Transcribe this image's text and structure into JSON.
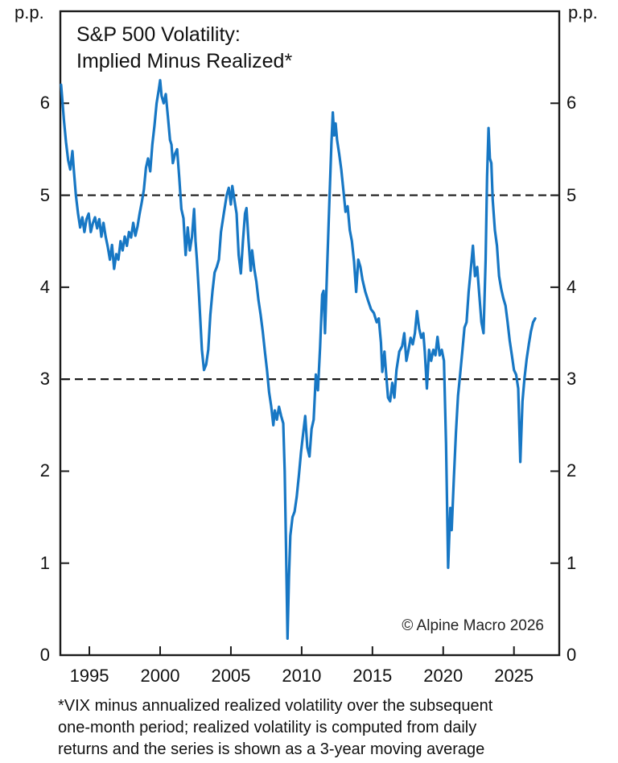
{
  "chart_data": {
    "type": "line",
    "title_lines": [
      "S&P 500 Volatility:",
      "Implied Minus Realized*"
    ],
    "unit_label": "p.p.",
    "watermark": "© Alpine Macro 2026",
    "footnote_lines": [
      "*VIX minus annualized realized volatility over the subsequent",
      "one-month period; realized volatility is computed from daily",
      "returns and the series is shown as a 3-year moving average"
    ],
    "xlabel": "",
    "ylabel": "p.p.",
    "x_ticks": [
      1995,
      2000,
      2005,
      2010,
      2015,
      2020,
      2025
    ],
    "y_ticks": [
      0,
      1,
      2,
      3,
      4,
      5,
      6
    ],
    "xlim": [
      1992.95,
      2028.2
    ],
    "ylim": [
      0,
      7.0
    ],
    "reference_lines": [
      5,
      3
    ],
    "grid": "off",
    "legend": "none",
    "line_color": "#1777c4",
    "axis_color": "#1a1a1a",
    "series": [
      {
        "name": "VIX minus subsequent realized volatility (3-year moving average)",
        "points": [
          [
            1993.0,
            6.2
          ],
          [
            1993.1,
            6.02
          ],
          [
            1993.2,
            5.82
          ],
          [
            1993.35,
            5.58
          ],
          [
            1993.5,
            5.38
          ],
          [
            1993.65,
            5.28
          ],
          [
            1993.8,
            5.48
          ],
          [
            1993.9,
            5.28
          ],
          [
            1994.05,
            5.0
          ],
          [
            1994.2,
            4.8
          ],
          [
            1994.35,
            4.65
          ],
          [
            1994.5,
            4.76
          ],
          [
            1994.65,
            4.6
          ],
          [
            1994.8,
            4.74
          ],
          [
            1994.95,
            4.8
          ],
          [
            1995.1,
            4.6
          ],
          [
            1995.25,
            4.7
          ],
          [
            1995.4,
            4.76
          ],
          [
            1995.55,
            4.64
          ],
          [
            1995.7,
            4.74
          ],
          [
            1995.85,
            4.55
          ],
          [
            1996.0,
            4.7
          ],
          [
            1996.15,
            4.55
          ],
          [
            1996.3,
            4.44
          ],
          [
            1996.45,
            4.3
          ],
          [
            1996.6,
            4.46
          ],
          [
            1996.75,
            4.2
          ],
          [
            1996.9,
            4.36
          ],
          [
            1997.05,
            4.3
          ],
          [
            1997.2,
            4.5
          ],
          [
            1997.35,
            4.4
          ],
          [
            1997.5,
            4.55
          ],
          [
            1997.65,
            4.45
          ],
          [
            1997.8,
            4.6
          ],
          [
            1997.95,
            4.54
          ],
          [
            1998.1,
            4.7
          ],
          [
            1998.25,
            4.56
          ],
          [
            1998.4,
            4.66
          ],
          [
            1998.55,
            4.8
          ],
          [
            1998.7,
            4.92
          ],
          [
            1998.85,
            5.06
          ],
          [
            1999.0,
            5.3
          ],
          [
            1999.15,
            5.4
          ],
          [
            1999.3,
            5.26
          ],
          [
            1999.45,
            5.55
          ],
          [
            1999.6,
            5.76
          ],
          [
            1999.75,
            6.0
          ],
          [
            1999.9,
            6.14
          ],
          [
            2000.0,
            6.25
          ],
          [
            2000.1,
            6.08
          ],
          [
            2000.25,
            6.0
          ],
          [
            2000.4,
            6.1
          ],
          [
            2000.55,
            5.85
          ],
          [
            2000.7,
            5.6
          ],
          [
            2000.8,
            5.55
          ],
          [
            2000.9,
            5.35
          ],
          [
            2001.05,
            5.45
          ],
          [
            2001.2,
            5.5
          ],
          [
            2001.35,
            5.2
          ],
          [
            2001.5,
            4.85
          ],
          [
            2001.65,
            4.75
          ],
          [
            2001.8,
            4.35
          ],
          [
            2001.95,
            4.65
          ],
          [
            2002.1,
            4.4
          ],
          [
            2002.25,
            4.55
          ],
          [
            2002.4,
            4.85
          ],
          [
            2002.5,
            4.5
          ],
          [
            2002.6,
            4.3
          ],
          [
            2002.75,
            3.9
          ],
          [
            2002.95,
            3.32
          ],
          [
            2003.1,
            3.1
          ],
          [
            2003.25,
            3.16
          ],
          [
            2003.4,
            3.32
          ],
          [
            2003.55,
            3.7
          ],
          [
            2003.7,
            3.96
          ],
          [
            2003.85,
            4.16
          ],
          [
            2004.0,
            4.22
          ],
          [
            2004.15,
            4.3
          ],
          [
            2004.3,
            4.6
          ],
          [
            2004.5,
            4.8
          ],
          [
            2004.7,
            5.0
          ],
          [
            2004.85,
            5.08
          ],
          [
            2005.0,
            4.9
          ],
          [
            2005.1,
            5.1
          ],
          [
            2005.25,
            4.95
          ],
          [
            2005.4,
            4.8
          ],
          [
            2005.55,
            4.35
          ],
          [
            2005.7,
            4.15
          ],
          [
            2005.85,
            4.5
          ],
          [
            2006.0,
            4.8
          ],
          [
            2006.1,
            4.86
          ],
          [
            2006.25,
            4.5
          ],
          [
            2006.4,
            4.18
          ],
          [
            2006.5,
            4.4
          ],
          [
            2006.65,
            4.2
          ],
          [
            2006.8,
            4.06
          ],
          [
            2006.95,
            3.86
          ],
          [
            2007.1,
            3.7
          ],
          [
            2007.25,
            3.52
          ],
          [
            2007.4,
            3.3
          ],
          [
            2007.55,
            3.1
          ],
          [
            2007.7,
            2.86
          ],
          [
            2007.85,
            2.7
          ],
          [
            2008.0,
            2.5
          ],
          [
            2008.1,
            2.66
          ],
          [
            2008.25,
            2.56
          ],
          [
            2008.4,
            2.7
          ],
          [
            2008.55,
            2.6
          ],
          [
            2008.7,
            2.52
          ],
          [
            2008.8,
            2.0
          ],
          [
            2008.9,
            1.15
          ],
          [
            2009.0,
            0.18
          ],
          [
            2009.1,
            0.85
          ],
          [
            2009.2,
            1.3
          ],
          [
            2009.35,
            1.5
          ],
          [
            2009.5,
            1.56
          ],
          [
            2009.65,
            1.72
          ],
          [
            2009.8,
            1.95
          ],
          [
            2009.95,
            2.2
          ],
          [
            2010.1,
            2.4
          ],
          [
            2010.25,
            2.6
          ],
          [
            2010.4,
            2.26
          ],
          [
            2010.55,
            2.16
          ],
          [
            2010.7,
            2.46
          ],
          [
            2010.85,
            2.56
          ],
          [
            2011.0,
            3.05
          ],
          [
            2011.15,
            2.88
          ],
          [
            2011.3,
            3.35
          ],
          [
            2011.45,
            3.92
          ],
          [
            2011.55,
            3.96
          ],
          [
            2011.65,
            3.5
          ],
          [
            2011.8,
            4.2
          ],
          [
            2011.95,
            4.9
          ],
          [
            2012.1,
            5.55
          ],
          [
            2012.2,
            5.9
          ],
          [
            2012.3,
            5.65
          ],
          [
            2012.4,
            5.78
          ],
          [
            2012.5,
            5.6
          ],
          [
            2012.65,
            5.45
          ],
          [
            2012.8,
            5.28
          ],
          [
            2012.95,
            5.05
          ],
          [
            2013.1,
            4.82
          ],
          [
            2013.25,
            4.88
          ],
          [
            2013.4,
            4.62
          ],
          [
            2013.55,
            4.5
          ],
          [
            2013.7,
            4.28
          ],
          [
            2013.85,
            3.95
          ],
          [
            2014.0,
            4.3
          ],
          [
            2014.15,
            4.22
          ],
          [
            2014.3,
            4.08
          ],
          [
            2014.5,
            3.95
          ],
          [
            2014.7,
            3.85
          ],
          [
            2014.9,
            3.76
          ],
          [
            2015.1,
            3.72
          ],
          [
            2015.3,
            3.62
          ],
          [
            2015.45,
            3.66
          ],
          [
            2015.6,
            3.4
          ],
          [
            2015.7,
            3.08
          ],
          [
            2015.85,
            3.3
          ],
          [
            2015.95,
            3.1
          ],
          [
            2016.1,
            2.8
          ],
          [
            2016.25,
            2.76
          ],
          [
            2016.4,
            2.96
          ],
          [
            2016.55,
            2.8
          ],
          [
            2016.7,
            3.1
          ],
          [
            2016.9,
            3.3
          ],
          [
            2017.1,
            3.36
          ],
          [
            2017.25,
            3.5
          ],
          [
            2017.4,
            3.2
          ],
          [
            2017.55,
            3.32
          ],
          [
            2017.7,
            3.45
          ],
          [
            2017.85,
            3.38
          ],
          [
            2018.0,
            3.5
          ],
          [
            2018.15,
            3.74
          ],
          [
            2018.3,
            3.55
          ],
          [
            2018.45,
            3.45
          ],
          [
            2018.6,
            3.5
          ],
          [
            2018.7,
            3.3
          ],
          [
            2018.85,
            2.9
          ],
          [
            2019.0,
            3.32
          ],
          [
            2019.15,
            3.2
          ],
          [
            2019.3,
            3.32
          ],
          [
            2019.45,
            3.26
          ],
          [
            2019.6,
            3.46
          ],
          [
            2019.75,
            3.26
          ],
          [
            2019.9,
            3.32
          ],
          [
            2020.05,
            3.2
          ],
          [
            2020.2,
            2.3
          ],
          [
            2020.35,
            0.95
          ],
          [
            2020.5,
            1.6
          ],
          [
            2020.6,
            1.36
          ],
          [
            2020.75,
            1.92
          ],
          [
            2020.9,
            2.42
          ],
          [
            2021.05,
            2.82
          ],
          [
            2021.2,
            3.06
          ],
          [
            2021.35,
            3.3
          ],
          [
            2021.5,
            3.56
          ],
          [
            2021.65,
            3.62
          ],
          [
            2021.8,
            3.95
          ],
          [
            2021.95,
            4.2
          ],
          [
            2022.1,
            4.45
          ],
          [
            2022.25,
            4.12
          ],
          [
            2022.4,
            4.22
          ],
          [
            2022.55,
            3.92
          ],
          [
            2022.7,
            3.62
          ],
          [
            2022.85,
            3.5
          ],
          [
            2023.0,
            4.3
          ],
          [
            2023.1,
            5.2
          ],
          [
            2023.2,
            5.73
          ],
          [
            2023.3,
            5.4
          ],
          [
            2023.4,
            5.35
          ],
          [
            2023.5,
            4.95
          ],
          [
            2023.65,
            4.62
          ],
          [
            2023.8,
            4.45
          ],
          [
            2023.95,
            4.12
          ],
          [
            2024.1,
            3.98
          ],
          [
            2024.25,
            3.88
          ],
          [
            2024.4,
            3.8
          ],
          [
            2024.55,
            3.62
          ],
          [
            2024.7,
            3.42
          ],
          [
            2024.85,
            3.26
          ],
          [
            2025.0,
            3.1
          ],
          [
            2025.15,
            3.05
          ],
          [
            2025.3,
            2.9
          ],
          [
            2025.45,
            2.1
          ],
          [
            2025.6,
            2.76
          ],
          [
            2025.75,
            3.02
          ],
          [
            2025.9,
            3.22
          ],
          [
            2026.05,
            3.38
          ],
          [
            2026.2,
            3.52
          ],
          [
            2026.35,
            3.62
          ],
          [
            2026.5,
            3.66
          ]
        ]
      }
    ]
  }
}
